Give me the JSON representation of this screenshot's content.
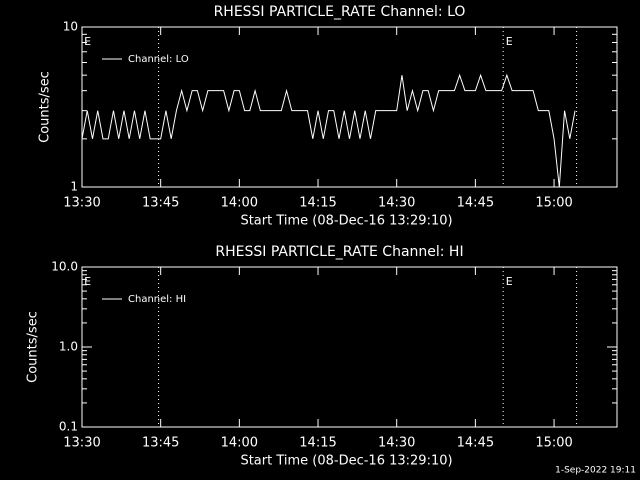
{
  "chart_data": [
    {
      "type": "line",
      "title": "RHESSI PARTICLE_RATE Channel: LO",
      "xlabel": "Start Time (08-Dec-16 13:29:10)",
      "ylabel": "Counts/sec",
      "log_y": true,
      "ylim": [
        1,
        10
      ],
      "yticks": [
        1,
        10
      ],
      "xlim": [
        810,
        912
      ],
      "xticks": [
        {
          "value": 810,
          "label": "13:30"
        },
        {
          "value": 825,
          "label": "13:45"
        },
        {
          "value": 840,
          "label": "14:00"
        },
        {
          "value": 855,
          "label": "14:15"
        },
        {
          "value": 870,
          "label": "14:30"
        },
        {
          "value": 885,
          "label": "14:45"
        },
        {
          "value": 900,
          "label": "15:00"
        }
      ],
      "vlines": [
        824.6,
        890.3,
        904.3
      ],
      "annotations": [
        {
          "text": "E",
          "x": 810.4
        },
        {
          "text": "E",
          "x": 890.8
        }
      ],
      "legend": "upper left",
      "x": [
        810,
        811,
        812,
        813,
        814,
        815,
        816,
        817,
        818,
        819,
        820,
        821,
        822,
        823,
        824,
        825,
        826,
        827,
        828,
        829,
        830,
        831,
        832,
        833,
        834,
        835,
        836,
        837,
        838,
        839,
        840,
        841,
        842,
        843,
        844,
        845,
        846,
        847,
        848,
        849,
        850,
        851,
        852,
        853,
        854,
        855,
        856,
        857,
        858,
        859,
        860,
        861,
        862,
        863,
        864,
        865,
        866,
        867,
        868,
        869,
        870,
        871,
        872,
        873,
        874,
        875,
        876,
        877,
        878,
        879,
        880,
        881,
        882,
        883,
        884,
        885,
        886,
        887,
        888,
        889,
        890,
        891,
        892,
        893,
        894,
        895,
        896,
        897,
        898,
        899,
        900,
        901,
        902,
        903,
        904
      ],
      "series": [
        {
          "name": "Channel: LO",
          "color": "#ffffff",
          "values": [
            2,
            3,
            2,
            3,
            2,
            2,
            3,
            2,
            3,
            2,
            3,
            2,
            3,
            2,
            2,
            2,
            3,
            2,
            3,
            4,
            3,
            4,
            4,
            3,
            4,
            4,
            4,
            4,
            3,
            4,
            4,
            3,
            3,
            4,
            3,
            3,
            3,
            3,
            3,
            4,
            3,
            3,
            3,
            3,
            2,
            3,
            2,
            3,
            3,
            2,
            3,
            2,
            3,
            2,
            3,
            2,
            3,
            3,
            3,
            3,
            3,
            5,
            3,
            4,
            3,
            4,
            4,
            3,
            4,
            4,
            4,
            4,
            5,
            4,
            4,
            4,
            5,
            4,
            4,
            4,
            4,
            5,
            4,
            4,
            4,
            4,
            4,
            3,
            3,
            3,
            2,
            1,
            3,
            2,
            3
          ]
        }
      ]
    },
    {
      "type": "line",
      "title": "RHESSI PARTICLE_RATE Channel: HI",
      "xlabel": "Start Time (08-Dec-16 13:29:10)",
      "ylabel": "Counts/sec",
      "log_y": true,
      "ylim": [
        0.1,
        10
      ],
      "yticks": [
        0.1,
        {
          "value": 1,
          "label": "1.0"
        },
        {
          "value": 10,
          "label": "10.0"
        }
      ],
      "xlim": [
        810,
        912
      ],
      "xticks": [
        {
          "value": 810,
          "label": "13:30"
        },
        {
          "value": 825,
          "label": "13:45"
        },
        {
          "value": 840,
          "label": "14:00"
        },
        {
          "value": 855,
          "label": "14:15"
        },
        {
          "value": 870,
          "label": "14:30"
        },
        {
          "value": 885,
          "label": "14:45"
        },
        {
          "value": 900,
          "label": "15:00"
        }
      ],
      "vlines": [
        824.6,
        890.3,
        904.3
      ],
      "annotations": [
        {
          "text": "E",
          "x": 810.4
        },
        {
          "text": "E",
          "x": 890.8
        }
      ],
      "legend": "upper left",
      "x": [],
      "series": [
        {
          "name": "Channel: HI",
          "color": "#ffffff",
          "values": []
        }
      ]
    }
  ],
  "footer": "1-Sep-2022 19:11"
}
